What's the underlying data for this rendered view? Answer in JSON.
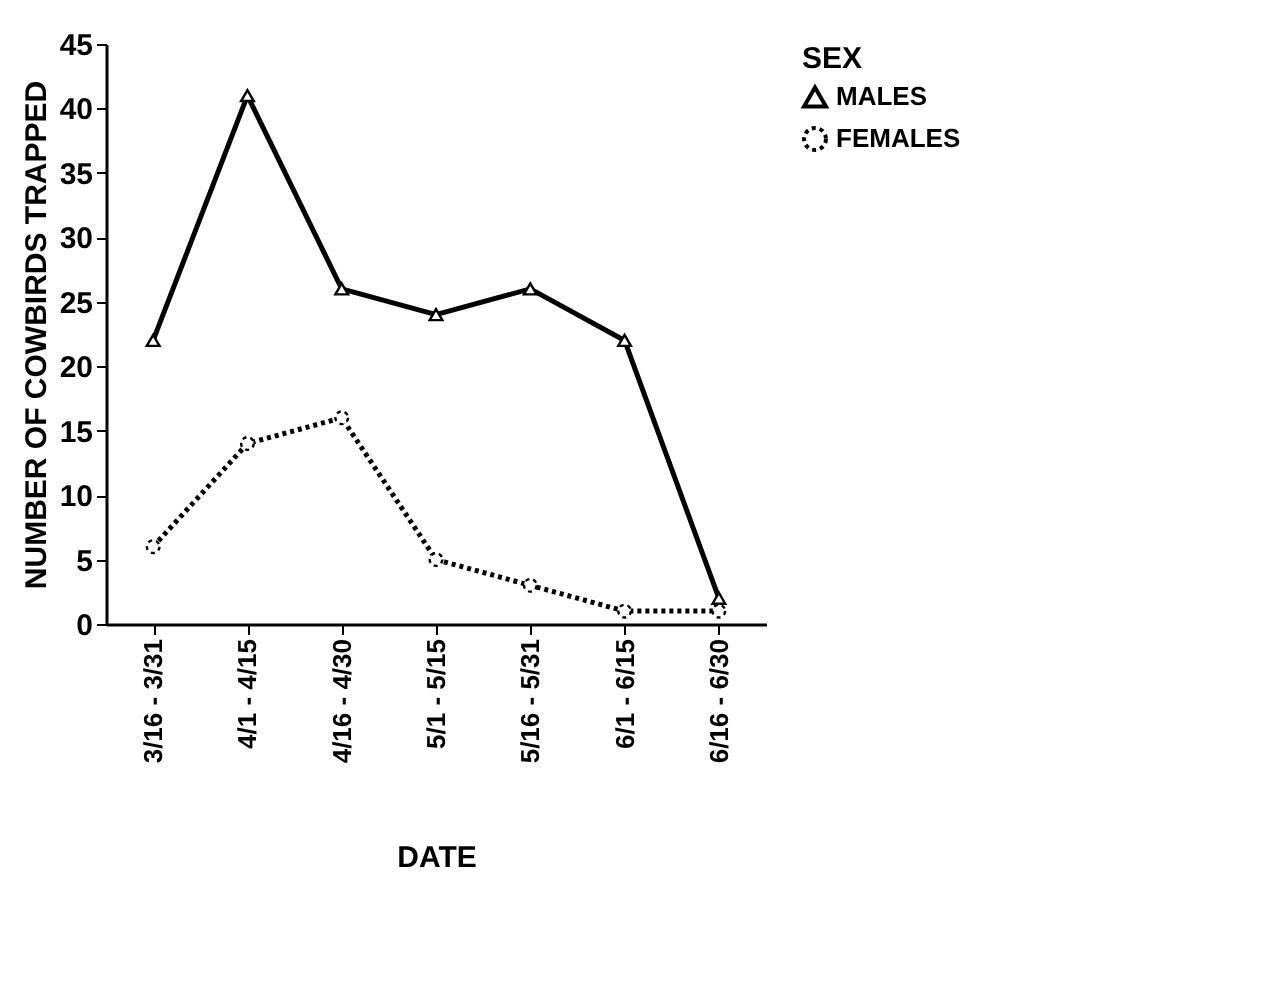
{
  "chart_data": {
    "type": "line",
    "xlabel": "DATE",
    "ylabel": "NUMBER OF COWBIRDS TRAPPED",
    "legend_title": "SEX",
    "categories": [
      "3/16 - 3/31",
      "4/1 - 4/15",
      "4/16 - 4/30",
      "5/1 - 5/15",
      "5/16 - 5/31",
      "6/1 - 6/15",
      "6/16 - 6/30"
    ],
    "series": [
      {
        "name": "MALES",
        "color": "#000000",
        "marker": "triangle",
        "line_style": "solid",
        "values": [
          22,
          41,
          26,
          24,
          26,
          22,
          2
        ]
      },
      {
        "name": "FEMALES",
        "color": "#000000",
        "marker": "circle",
        "line_style": "dotted",
        "values": [
          6,
          14,
          16,
          5,
          3,
          1,
          1
        ]
      }
    ],
    "ylim": [
      0,
      45
    ],
    "yticks": [
      0,
      5,
      10,
      15,
      20,
      25,
      30,
      35,
      40,
      45
    ],
    "grid": false,
    "legend": "top right"
  }
}
